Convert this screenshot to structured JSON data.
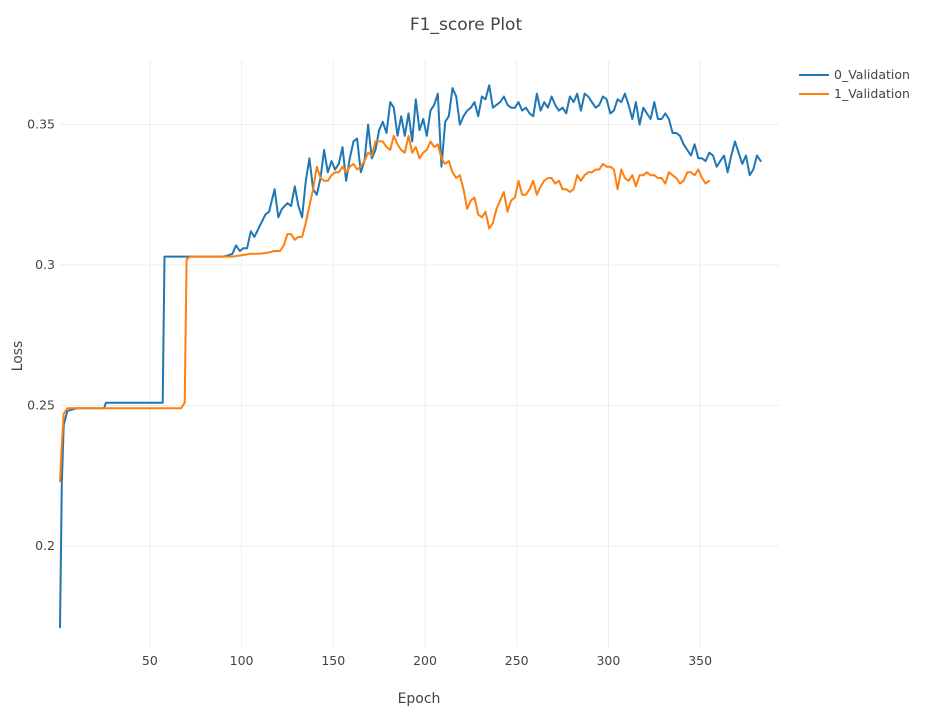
{
  "chart_data": {
    "type": "line",
    "title": "F1_score Plot",
    "xlabel": "Epoch",
    "ylabel": "Loss",
    "xlim": [
      1,
      393
    ],
    "ylim": [
      0.164,
      0.373
    ],
    "x_ticks": [
      50,
      100,
      150,
      200,
      250,
      300,
      350
    ],
    "y_ticks": [
      0.2,
      0.25,
      0.3,
      0.35
    ],
    "y_tick_labels": [
      "0.2",
      "0.25",
      "0.3",
      "0.35"
    ],
    "grid": true,
    "legend_position": "top-right",
    "series": [
      {
        "name": "0_Validation",
        "color": "#1f77b4",
        "points": [
          [
            1,
            0.171
          ],
          [
            2,
            0.222
          ],
          [
            3,
            0.243
          ],
          [
            5,
            0.248
          ],
          [
            10,
            0.249
          ],
          [
            20,
            0.249
          ],
          [
            25,
            0.249
          ],
          [
            26,
            0.251
          ],
          [
            40,
            0.251
          ],
          [
            57,
            0.251
          ],
          [
            58,
            0.303
          ],
          [
            70,
            0.303
          ],
          [
            80,
            0.303
          ],
          [
            90,
            0.303
          ],
          [
            93,
            0.3035
          ],
          [
            95,
            0.304
          ],
          [
            97,
            0.307
          ],
          [
            99,
            0.305
          ],
          [
            101,
            0.306
          ],
          [
            103,
            0.306
          ],
          [
            105,
            0.312
          ],
          [
            107,
            0.31
          ],
          [
            110,
            0.314
          ],
          [
            113,
            0.318
          ],
          [
            115,
            0.319
          ],
          [
            118,
            0.327
          ],
          [
            120,
            0.317
          ],
          [
            122,
            0.32
          ],
          [
            125,
            0.322
          ],
          [
            127,
            0.321
          ],
          [
            129,
            0.328
          ],
          [
            131,
            0.321
          ],
          [
            133,
            0.317
          ],
          [
            135,
            0.33
          ],
          [
            137,
            0.338
          ],
          [
            139,
            0.327
          ],
          [
            141,
            0.325
          ],
          [
            143,
            0.331
          ],
          [
            145,
            0.341
          ],
          [
            147,
            0.333
          ],
          [
            149,
            0.337
          ],
          [
            151,
            0.334
          ],
          [
            153,
            0.336
          ],
          [
            155,
            0.342
          ],
          [
            157,
            0.33
          ],
          [
            159,
            0.338
          ],
          [
            161,
            0.344
          ],
          [
            163,
            0.345
          ],
          [
            165,
            0.333
          ],
          [
            167,
            0.337
          ],
          [
            169,
            0.35
          ],
          [
            171,
            0.338
          ],
          [
            173,
            0.341
          ],
          [
            175,
            0.348
          ],
          [
            177,
            0.351
          ],
          [
            179,
            0.347
          ],
          [
            181,
            0.358
          ],
          [
            183,
            0.356
          ],
          [
            185,
            0.346
          ],
          [
            187,
            0.353
          ],
          [
            189,
            0.346
          ],
          [
            191,
            0.354
          ],
          [
            193,
            0.344
          ],
          [
            195,
            0.359
          ],
          [
            197,
            0.348
          ],
          [
            199,
            0.352
          ],
          [
            201,
            0.346
          ],
          [
            203,
            0.355
          ],
          [
            205,
            0.357
          ],
          [
            207,
            0.361
          ],
          [
            209,
            0.335
          ],
          [
            211,
            0.351
          ],
          [
            213,
            0.353
          ],
          [
            215,
            0.363
          ],
          [
            217,
            0.36
          ],
          [
            219,
            0.35
          ],
          [
            221,
            0.353
          ],
          [
            223,
            0.355
          ],
          [
            225,
            0.356
          ],
          [
            227,
            0.358
          ],
          [
            229,
            0.353
          ],
          [
            231,
            0.36
          ],
          [
            233,
            0.359
          ],
          [
            235,
            0.364
          ],
          [
            237,
            0.356
          ],
          [
            239,
            0.357
          ],
          [
            241,
            0.358
          ],
          [
            243,
            0.36
          ],
          [
            245,
            0.357
          ],
          [
            247,
            0.356
          ],
          [
            249,
            0.356
          ],
          [
            251,
            0.358
          ],
          [
            253,
            0.355
          ],
          [
            255,
            0.356
          ],
          [
            257,
            0.354
          ],
          [
            259,
            0.353
          ],
          [
            261,
            0.361
          ],
          [
            263,
            0.355
          ],
          [
            265,
            0.358
          ],
          [
            267,
            0.356
          ],
          [
            269,
            0.36
          ],
          [
            271,
            0.357
          ],
          [
            273,
            0.355
          ],
          [
            275,
            0.356
          ],
          [
            277,
            0.354
          ],
          [
            279,
            0.36
          ],
          [
            281,
            0.358
          ],
          [
            283,
            0.361
          ],
          [
            285,
            0.355
          ],
          [
            287,
            0.361
          ],
          [
            289,
            0.36
          ],
          [
            291,
            0.358
          ],
          [
            293,
            0.356
          ],
          [
            295,
            0.357
          ],
          [
            297,
            0.36
          ],
          [
            299,
            0.359
          ],
          [
            301,
            0.354
          ],
          [
            303,
            0.355
          ],
          [
            305,
            0.359
          ],
          [
            307,
            0.358
          ],
          [
            309,
            0.361
          ],
          [
            311,
            0.357
          ],
          [
            313,
            0.352
          ],
          [
            315,
            0.358
          ],
          [
            317,
            0.35
          ],
          [
            319,
            0.356
          ],
          [
            321,
            0.354
          ],
          [
            323,
            0.352
          ],
          [
            325,
            0.358
          ],
          [
            327,
            0.352
          ],
          [
            329,
            0.352
          ],
          [
            331,
            0.354
          ],
          [
            333,
            0.352
          ],
          [
            335,
            0.347
          ],
          [
            337,
            0.347
          ],
          [
            339,
            0.346
          ],
          [
            341,
            0.343
          ],
          [
            343,
            0.341
          ],
          [
            345,
            0.339
          ],
          [
            347,
            0.343
          ],
          [
            349,
            0.338
          ],
          [
            351,
            0.338
          ],
          [
            353,
            0.337
          ],
          [
            355,
            0.34
          ],
          [
            357,
            0.339
          ],
          [
            359,
            0.335
          ],
          [
            361,
            0.337
          ],
          [
            363,
            0.339
          ],
          [
            365,
            0.333
          ],
          [
            367,
            0.339
          ],
          [
            369,
            0.344
          ],
          [
            371,
            0.34
          ],
          [
            373,
            0.336
          ],
          [
            375,
            0.339
          ],
          [
            377,
            0.332
          ],
          [
            379,
            0.334
          ],
          [
            381,
            0.339
          ],
          [
            383,
            0.337
          ]
        ]
      },
      {
        "name": "1_Validation",
        "color": "#ff7f0e",
        "points": [
          [
            1,
            0.223
          ],
          [
            2,
            0.236
          ],
          [
            3,
            0.247
          ],
          [
            5,
            0.249
          ],
          [
            10,
            0.249
          ],
          [
            30,
            0.249
          ],
          [
            50,
            0.249
          ],
          [
            60,
            0.249
          ],
          [
            65,
            0.249
          ],
          [
            67,
            0.249
          ],
          [
            69,
            0.251
          ],
          [
            70,
            0.302
          ],
          [
            72,
            0.303
          ],
          [
            80,
            0.303
          ],
          [
            90,
            0.303
          ],
          [
            95,
            0.303
          ],
          [
            100,
            0.3035
          ],
          [
            105,
            0.304
          ],
          [
            110,
            0.304
          ],
          [
            115,
            0.3045
          ],
          [
            118,
            0.305
          ],
          [
            121,
            0.305
          ],
          [
            123,
            0.307
          ],
          [
            125,
            0.311
          ],
          [
            127,
            0.311
          ],
          [
            129,
            0.309
          ],
          [
            131,
            0.31
          ],
          [
            133,
            0.31
          ],
          [
            135,
            0.315
          ],
          [
            137,
            0.321
          ],
          [
            139,
            0.327
          ],
          [
            141,
            0.335
          ],
          [
            143,
            0.331
          ],
          [
            145,
            0.33
          ],
          [
            147,
            0.33
          ],
          [
            149,
            0.332
          ],
          [
            151,
            0.333
          ],
          [
            153,
            0.333
          ],
          [
            155,
            0.335
          ],
          [
            157,
            0.333
          ],
          [
            159,
            0.335
          ],
          [
            161,
            0.336
          ],
          [
            163,
            0.334
          ],
          [
            165,
            0.335
          ],
          [
            167,
            0.337
          ],
          [
            169,
            0.34
          ],
          [
            171,
            0.339
          ],
          [
            173,
            0.344
          ],
          [
            175,
            0.344
          ],
          [
            177,
            0.344
          ],
          [
            179,
            0.342
          ],
          [
            181,
            0.341
          ],
          [
            183,
            0.346
          ],
          [
            185,
            0.343
          ],
          [
            187,
            0.341
          ],
          [
            189,
            0.34
          ],
          [
            191,
            0.346
          ],
          [
            193,
            0.34
          ],
          [
            195,
            0.342
          ],
          [
            197,
            0.338
          ],
          [
            199,
            0.34
          ],
          [
            201,
            0.341
          ],
          [
            203,
            0.344
          ],
          [
            205,
            0.342
          ],
          [
            207,
            0.343
          ],
          [
            209,
            0.338
          ],
          [
            211,
            0.336
          ],
          [
            213,
            0.337
          ],
          [
            215,
            0.333
          ],
          [
            217,
            0.331
          ],
          [
            219,
            0.332
          ],
          [
            221,
            0.327
          ],
          [
            223,
            0.32
          ],
          [
            225,
            0.323
          ],
          [
            227,
            0.324
          ],
          [
            229,
            0.318
          ],
          [
            231,
            0.317
          ],
          [
            233,
            0.319
          ],
          [
            235,
            0.313
          ],
          [
            237,
            0.315
          ],
          [
            239,
            0.32
          ],
          [
            241,
            0.323
          ],
          [
            243,
            0.326
          ],
          [
            245,
            0.319
          ],
          [
            247,
            0.323
          ],
          [
            249,
            0.324
          ],
          [
            251,
            0.33
          ],
          [
            253,
            0.325
          ],
          [
            255,
            0.325
          ],
          [
            257,
            0.327
          ],
          [
            259,
            0.33
          ],
          [
            261,
            0.325
          ],
          [
            263,
            0.328
          ],
          [
            265,
            0.33
          ],
          [
            267,
            0.331
          ],
          [
            269,
            0.331
          ],
          [
            271,
            0.329
          ],
          [
            273,
            0.33
          ],
          [
            275,
            0.327
          ],
          [
            277,
            0.327
          ],
          [
            279,
            0.326
          ],
          [
            281,
            0.327
          ],
          [
            283,
            0.332
          ],
          [
            285,
            0.33
          ],
          [
            287,
            0.332
          ],
          [
            289,
            0.333
          ],
          [
            291,
            0.333
          ],
          [
            293,
            0.334
          ],
          [
            295,
            0.334
          ],
          [
            297,
            0.336
          ],
          [
            299,
            0.335
          ],
          [
            301,
            0.335
          ],
          [
            303,
            0.334
          ],
          [
            305,
            0.327
          ],
          [
            307,
            0.334
          ],
          [
            309,
            0.331
          ],
          [
            311,
            0.33
          ],
          [
            313,
            0.332
          ],
          [
            315,
            0.328
          ],
          [
            317,
            0.332
          ],
          [
            319,
            0.332
          ],
          [
            321,
            0.333
          ],
          [
            323,
            0.332
          ],
          [
            325,
            0.332
          ],
          [
            327,
            0.331
          ],
          [
            329,
            0.331
          ],
          [
            331,
            0.329
          ],
          [
            333,
            0.333
          ],
          [
            335,
            0.332
          ],
          [
            337,
            0.331
          ],
          [
            339,
            0.329
          ],
          [
            341,
            0.33
          ],
          [
            343,
            0.333
          ],
          [
            345,
            0.333
          ],
          [
            347,
            0.332
          ],
          [
            349,
            0.334
          ],
          [
            351,
            0.331
          ],
          [
            353,
            0.329
          ],
          [
            355,
            0.33
          ]
        ]
      }
    ]
  }
}
